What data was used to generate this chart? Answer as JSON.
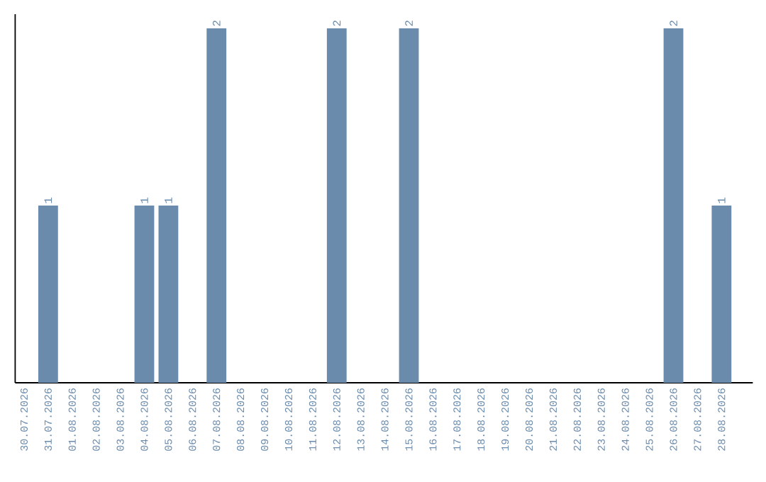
{
  "chart_data": {
    "type": "bar",
    "categories": [
      "30.07.2026",
      "31.07.2026",
      "01.08.2026",
      "02.08.2026",
      "03.08.2026",
      "04.08.2026",
      "05.08.2026",
      "06.08.2026",
      "07.08.2026",
      "08.08.2026",
      "09.08.2026",
      "10.08.2026",
      "11.08.2026",
      "12.08.2026",
      "13.08.2026",
      "14.08.2026",
      "15.08.2026",
      "16.08.2026",
      "17.08.2026",
      "18.08.2026",
      "19.08.2026",
      "20.08.2026",
      "21.08.2026",
      "22.08.2026",
      "23.08.2026",
      "24.08.2026",
      "25.08.2026",
      "26.08.2026",
      "27.08.2026",
      "28.08.2026"
    ],
    "values": [
      0,
      1,
      0,
      0,
      0,
      1,
      1,
      0,
      2,
      0,
      0,
      0,
      0,
      2,
      0,
      0,
      2,
      0,
      0,
      0,
      0,
      0,
      0,
      0,
      0,
      0,
      0,
      2,
      0,
      1
    ],
    "value_labels": [
      null,
      "1",
      null,
      null,
      null,
      "1",
      "1",
      null,
      "2",
      null,
      null,
      null,
      null,
      "2",
      null,
      null,
      "2",
      null,
      null,
      null,
      null,
      null,
      null,
      null,
      null,
      null,
      null,
      "2",
      null,
      "1"
    ],
    "color": "#6a8bab",
    "ylim": [
      0,
      2.08
    ],
    "tick_labels": "x"
  }
}
